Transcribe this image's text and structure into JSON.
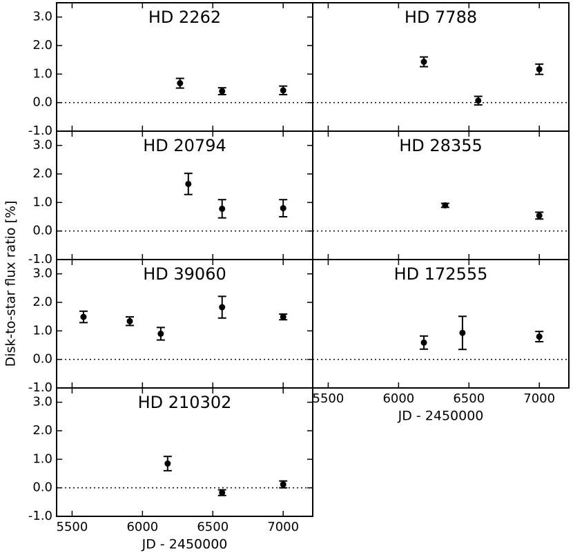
{
  "chart_data": [
    {
      "type": "errorbar",
      "title": "HD 2262",
      "x": [
        6267,
        6566,
        7000
      ],
      "values": [
        0.68,
        0.4,
        0.43
      ],
      "errors": [
        0.17,
        0.12,
        0.15
      ],
      "color": "#000000",
      "hline": 0,
      "xlim": [
        5390,
        7210
      ],
      "xticks": [
        5500,
        6000,
        6500,
        7000
      ],
      "ylim": [
        -1,
        3.5
      ],
      "yticks": [
        {
          "value": -1,
          "label": "-1.0"
        },
        {
          "value": 0,
          "label": "0.0"
        },
        {
          "value": 1,
          "label": "1.0"
        },
        {
          "value": 2,
          "label": "2.0"
        },
        {
          "value": 3,
          "label": "3.0"
        }
      ]
    },
    {
      "type": "errorbar",
      "title": "HD 7788",
      "x": [
        6180,
        6566,
        7000
      ],
      "values": [
        1.43,
        0.07,
        1.17
      ],
      "errors": [
        0.17,
        0.15,
        0.18
      ],
      "color": "#000000",
      "hline": 0,
      "xlim": [
        5390,
        7210
      ],
      "xticks": [
        5500,
        6000,
        6500,
        7000
      ],
      "ylim": [
        -1,
        3.5
      ]
    },
    {
      "type": "errorbar",
      "title": "HD 20794",
      "x": [
        6326,
        6566,
        7000
      ],
      "values": [
        1.65,
        0.78,
        0.8
      ],
      "errors": [
        0.37,
        0.32,
        0.3
      ],
      "color": "#000000",
      "hline": 0,
      "xlim": [
        5390,
        7210
      ],
      "xticks": [
        5500,
        6000,
        6500,
        7000
      ],
      "ylim": [
        -1,
        3.5
      ],
      "yticks": [
        {
          "value": -1,
          "label": "-1.0"
        },
        {
          "value": 0,
          "label": "0.0"
        },
        {
          "value": 1,
          "label": "1.0"
        },
        {
          "value": 2,
          "label": "2.0"
        },
        {
          "value": 3,
          "label": "3.0"
        }
      ],
      "ylabel": "Disk-to-star flux ratio [%]"
    },
    {
      "type": "errorbar",
      "title": "HD 28355",
      "x": [
        6331,
        7000
      ],
      "values": [
        0.9,
        0.54
      ],
      "errors": [
        0.07,
        0.12
      ],
      "color": "#000000",
      "hline": 0,
      "xlim": [
        5390,
        7210
      ],
      "xticks": [
        5500,
        6000,
        6500,
        7000
      ],
      "ylim": [
        -1,
        3.5
      ]
    },
    {
      "type": "errorbar",
      "title": "HD 39060",
      "x": [
        5581,
        5910,
        6130,
        6566,
        7000
      ],
      "values": [
        1.49,
        1.34,
        0.9,
        1.83,
        1.49
      ],
      "errors": [
        0.2,
        0.15,
        0.22,
        0.38,
        0.1
      ],
      "color": "#000000",
      "hline": 0,
      "xlim": [
        5390,
        7210
      ],
      "xticks": [
        5500,
        6000,
        6500,
        7000
      ],
      "ylim": [
        -1,
        3.5
      ],
      "yticks": [
        {
          "value": -1,
          "label": "-1.0"
        },
        {
          "value": 0,
          "label": "0.0"
        },
        {
          "value": 1,
          "label": "1.0"
        },
        {
          "value": 2,
          "label": "2.0"
        },
        {
          "value": 3,
          "label": "3.0"
        }
      ]
    },
    {
      "type": "errorbar",
      "title": "HD 172555",
      "x": [
        6180,
        6454,
        7000
      ],
      "values": [
        0.59,
        0.93,
        0.8
      ],
      "errors": [
        0.23,
        0.58,
        0.18
      ],
      "color": "#000000",
      "hline": 0,
      "xlim": [
        5390,
        7210
      ],
      "xticks": [
        5500,
        6000,
        6500,
        7000
      ],
      "ylim": [
        -1,
        3.5
      ],
      "xlabel": "JD - 2450000"
    },
    {
      "type": "errorbar",
      "title": "HD 210302",
      "x": [
        6179,
        6566,
        7000
      ],
      "values": [
        0.85,
        -0.17,
        0.12
      ],
      "errors": [
        0.25,
        0.1,
        0.12
      ],
      "color": "#000000",
      "hline": 0,
      "xlim": [
        5390,
        7210
      ],
      "xticks": [
        5500,
        6000,
        6500,
        7000
      ],
      "ylim": [
        -1,
        3.5
      ],
      "yticks": [
        {
          "value": -1,
          "label": "-1.0"
        },
        {
          "value": 0,
          "label": "0.0"
        },
        {
          "value": 1,
          "label": "1.0"
        },
        {
          "value": 2,
          "label": "2.0"
        },
        {
          "value": 3,
          "label": "3.0"
        }
      ],
      "xlabel": "JD - 2450000"
    }
  ]
}
